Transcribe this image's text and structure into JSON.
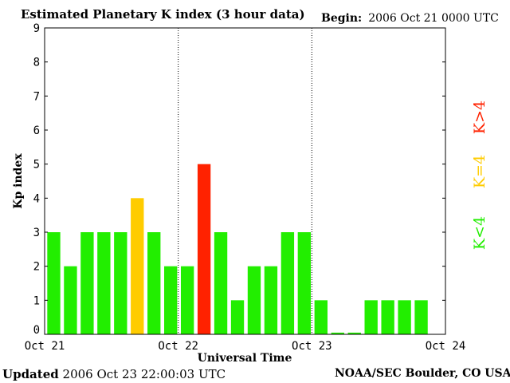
{
  "header": {
    "title": "Estimated Planetary K index (3 hour data)",
    "begin_label": "Begin:",
    "begin_value": "2006 Oct 21 0000 UTC"
  },
  "footer": {
    "updated_label": "Updated",
    "updated_value": "2006 Oct 23 22:00:03 UTC",
    "credit": "NOAA/SEC Boulder, CO USA"
  },
  "legend": {
    "low": "K<4",
    "mid": "K=4",
    "high": "K>4"
  },
  "colors": {
    "low": "#22ee00",
    "mid": "#ffcc00",
    "high": "#ff2200"
  },
  "chart_data": {
    "type": "bar",
    "title": "Estimated Planetary K index (3 hour data)",
    "xlabel": "Universal Time",
    "ylabel": "Kp index",
    "ylim": [
      0,
      9
    ],
    "yticks": [
      "0",
      "1",
      "2",
      "3",
      "4",
      "5",
      "6",
      "7",
      "8",
      "9"
    ],
    "xticks": [
      "Oct 21",
      "Oct 22",
      "Oct 23",
      "Oct 24"
    ],
    "bars_per_day": 8,
    "values": [
      3,
      2,
      3,
      3,
      3,
      4,
      3,
      2,
      2,
      5,
      3,
      1,
      2,
      2,
      3,
      3,
      1,
      0.05,
      0.05,
      1,
      1,
      1,
      1
    ],
    "grid": false,
    "day_dividers": true
  }
}
